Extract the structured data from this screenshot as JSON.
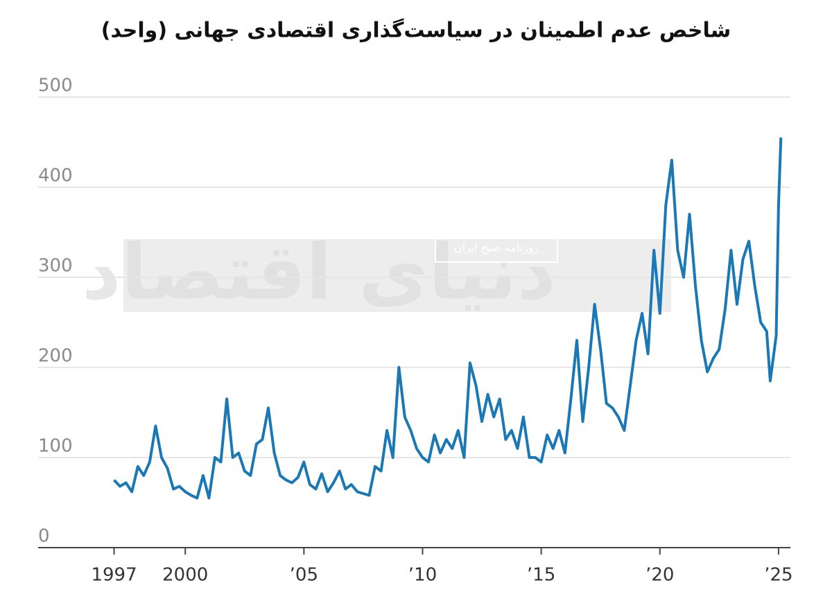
{
  "chart_data": {
    "type": "line",
    "title": "شاخص عدم اطمینان در سیاست‌گذاری اقتصادی جهانی (واحد)",
    "watermark": "روزنامه صبح ایران",
    "watermark_logo": "دنیای اقتصاد",
    "grid": true,
    "xlim": [
      1993.8,
      2025.5
    ],
    "ylim": [
      0,
      500
    ],
    "yticks": [
      0,
      100,
      200,
      300,
      400,
      500
    ],
    "xticks": [
      1997,
      2000,
      {
        "value": 2005,
        "label": "’05"
      },
      {
        "value": 2010,
        "label": "’10"
      },
      {
        "value": 2015,
        "label": "’15"
      },
      {
        "value": 2020,
        "label": "’20"
      },
      {
        "value": 2025,
        "label": "’25"
      }
    ],
    "series": [
      {
        "color": "#1a78b4",
        "x": [
          1997.0,
          1997.25,
          1997.5,
          1997.75,
          1998.0,
          1998.25,
          1998.5,
          1998.75,
          1999.0,
          1999.25,
          1999.5,
          1999.75,
          2000.0,
          2000.25,
          2000.5,
          2000.75,
          2001.0,
          2001.25,
          2001.5,
          2001.75,
          2002.0,
          2002.25,
          2002.5,
          2002.75,
          2003.0,
          2003.25,
          2003.5,
          2003.75,
          2004.0,
          2004.25,
          2004.5,
          2004.75,
          2005.0,
          2005.25,
          2005.5,
          2005.75,
          2006.0,
          2006.25,
          2006.5,
          2006.75,
          2007.0,
          2007.25,
          2007.5,
          2007.75,
          2008.0,
          2008.25,
          2008.5,
          2008.75,
          2009.0,
          2009.25,
          2009.5,
          2009.75,
          2010.0,
          2010.25,
          2010.5,
          2010.75,
          2011.0,
          2011.25,
          2011.5,
          2011.75,
          2012.0,
          2012.25,
          2012.5,
          2012.75,
          2013.0,
          2013.25,
          2013.5,
          2013.75,
          2014.0,
          2014.25,
          2014.5,
          2014.75,
          2015.0,
          2015.25,
          2015.5,
          2015.75,
          2016.0,
          2016.25,
          2016.5,
          2016.75,
          2017.0,
          2017.25,
          2017.5,
          2017.75,
          2018.0,
          2018.25,
          2018.5,
          2018.75,
          2019.0,
          2019.25,
          2019.5,
          2019.75,
          2020.0,
          2020.25,
          2020.5,
          2020.75,
          2021.0,
          2021.25,
          2021.5,
          2021.75,
          2022.0,
          2022.25,
          2022.5,
          2022.75,
          2023.0,
          2023.25,
          2023.5,
          2023.75,
          2024.0,
          2024.25,
          2024.5,
          2024.65,
          2024.9,
          2025.0,
          2025.1
        ],
        "values": [
          75,
          68,
          72,
          62,
          90,
          80,
          95,
          135,
          100,
          88,
          65,
          68,
          62,
          58,
          55,
          80,
          55,
          100,
          95,
          165,
          100,
          105,
          85,
          80,
          115,
          120,
          155,
          105,
          80,
          75,
          72,
          78,
          95,
          70,
          65,
          82,
          62,
          72,
          85,
          65,
          70,
          62,
          60,
          58,
          90,
          85,
          130,
          100,
          200,
          145,
          130,
          110,
          100,
          95,
          125,
          105,
          120,
          110,
          130,
          100,
          205,
          180,
          140,
          170,
          145,
          165,
          120,
          130,
          110,
          145,
          100,
          100,
          95,
          125,
          110,
          130,
          105,
          165,
          230,
          140,
          200,
          270,
          220,
          160,
          155,
          145,
          130,
          180,
          230,
          260,
          215,
          330,
          260,
          380,
          430,
          330,
          300,
          370,
          290,
          230,
          195,
          210,
          220,
          265,
          330,
          270,
          320,
          340,
          290,
          250,
          240,
          185,
          235,
          380,
          455
        ]
      }
    ]
  }
}
